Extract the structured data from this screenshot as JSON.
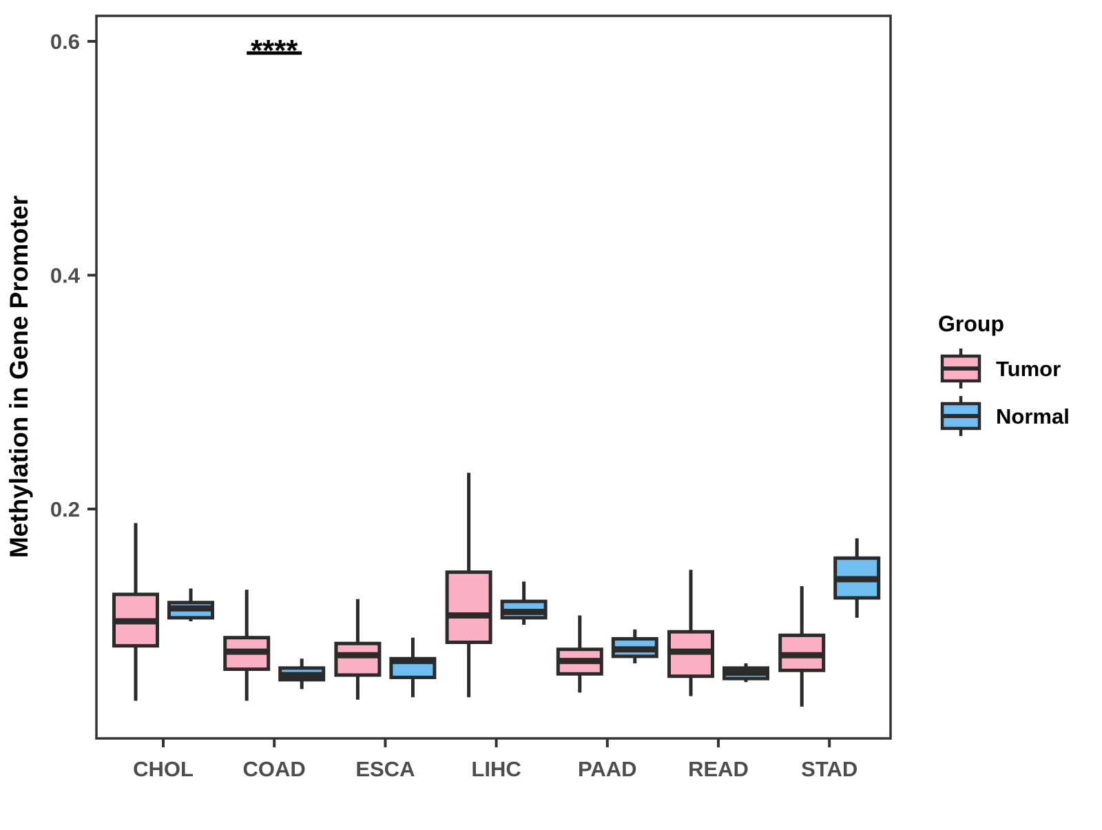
{
  "chart_data": {
    "type": "boxplot",
    "title": "",
    "xlabel": "",
    "ylabel": "Methylation in Gene Promoter",
    "ylim": [
      0,
      0.62
    ],
    "grid": false,
    "yticks": [
      {
        "value": 0.2,
        "label": "0.2"
      },
      {
        "value": 0.4,
        "label": "0.4"
      },
      {
        "value": 0.6,
        "label": "0.6"
      }
    ],
    "categories": [
      "CHOL",
      "COAD",
      "ESCA",
      "LIHC",
      "PAAD",
      "READ",
      "STAD"
    ],
    "legend": {
      "title": "Group",
      "position": "right",
      "entries": [
        {
          "label": "Tumor",
          "color": "#FBB0C3"
        },
        {
          "label": "Normal",
          "color": "#70BDF2"
        }
      ]
    },
    "significance": {
      "label": "****",
      "category": "COAD",
      "line_y": 0.59
    },
    "series": [
      {
        "name": "Tumor",
        "color": "#FBB0C3",
        "boxes": [
          {
            "low": 0.036,
            "q1": 0.083,
            "median": 0.104,
            "q3": 0.127,
            "high": 0.188
          },
          {
            "low": 0.036,
            "q1": 0.063,
            "median": 0.078,
            "q3": 0.09,
            "high": 0.131
          },
          {
            "low": 0.037,
            "q1": 0.058,
            "median": 0.075,
            "q3": 0.085,
            "high": 0.123
          },
          {
            "low": 0.039,
            "q1": 0.086,
            "median": 0.109,
            "q3": 0.146,
            "high": 0.231
          },
          {
            "low": 0.043,
            "q1": 0.059,
            "median": 0.07,
            "q3": 0.08,
            "high": 0.109
          },
          {
            "low": 0.04,
            "q1": 0.057,
            "median": 0.078,
            "q3": 0.095,
            "high": 0.148
          },
          {
            "low": 0.031,
            "q1": 0.062,
            "median": 0.075,
            "q3": 0.092,
            "high": 0.134
          }
        ]
      },
      {
        "name": "Normal",
        "color": "#70BDF2",
        "boxes": [
          {
            "low": 0.104,
            "q1": 0.107,
            "median": 0.115,
            "q3": 0.12,
            "high": 0.132
          },
          {
            "low": 0.046,
            "q1": 0.054,
            "median": 0.058,
            "q3": 0.064,
            "high": 0.072
          },
          {
            "low": 0.039,
            "q1": 0.056,
            "median": 0.07,
            "q3": 0.072,
            "high": 0.09
          },
          {
            "low": 0.101,
            "q1": 0.107,
            "median": 0.112,
            "q3": 0.121,
            "high": 0.138
          },
          {
            "low": 0.068,
            "q1": 0.074,
            "median": 0.08,
            "q3": 0.089,
            "high": 0.097
          },
          {
            "low": 0.052,
            "q1": 0.055,
            "median": 0.06,
            "q3": 0.064,
            "high": 0.068
          },
          {
            "low": 0.107,
            "q1": 0.124,
            "median": 0.14,
            "q3": 0.158,
            "high": 0.175
          }
        ]
      }
    ],
    "colors": {
      "box_stroke": "#2B2B2B",
      "axis_tick_text": "#4D4D4D",
      "axis_title_text": "#000000",
      "panel_border": "#333333",
      "significance_mark": "#000000"
    }
  }
}
